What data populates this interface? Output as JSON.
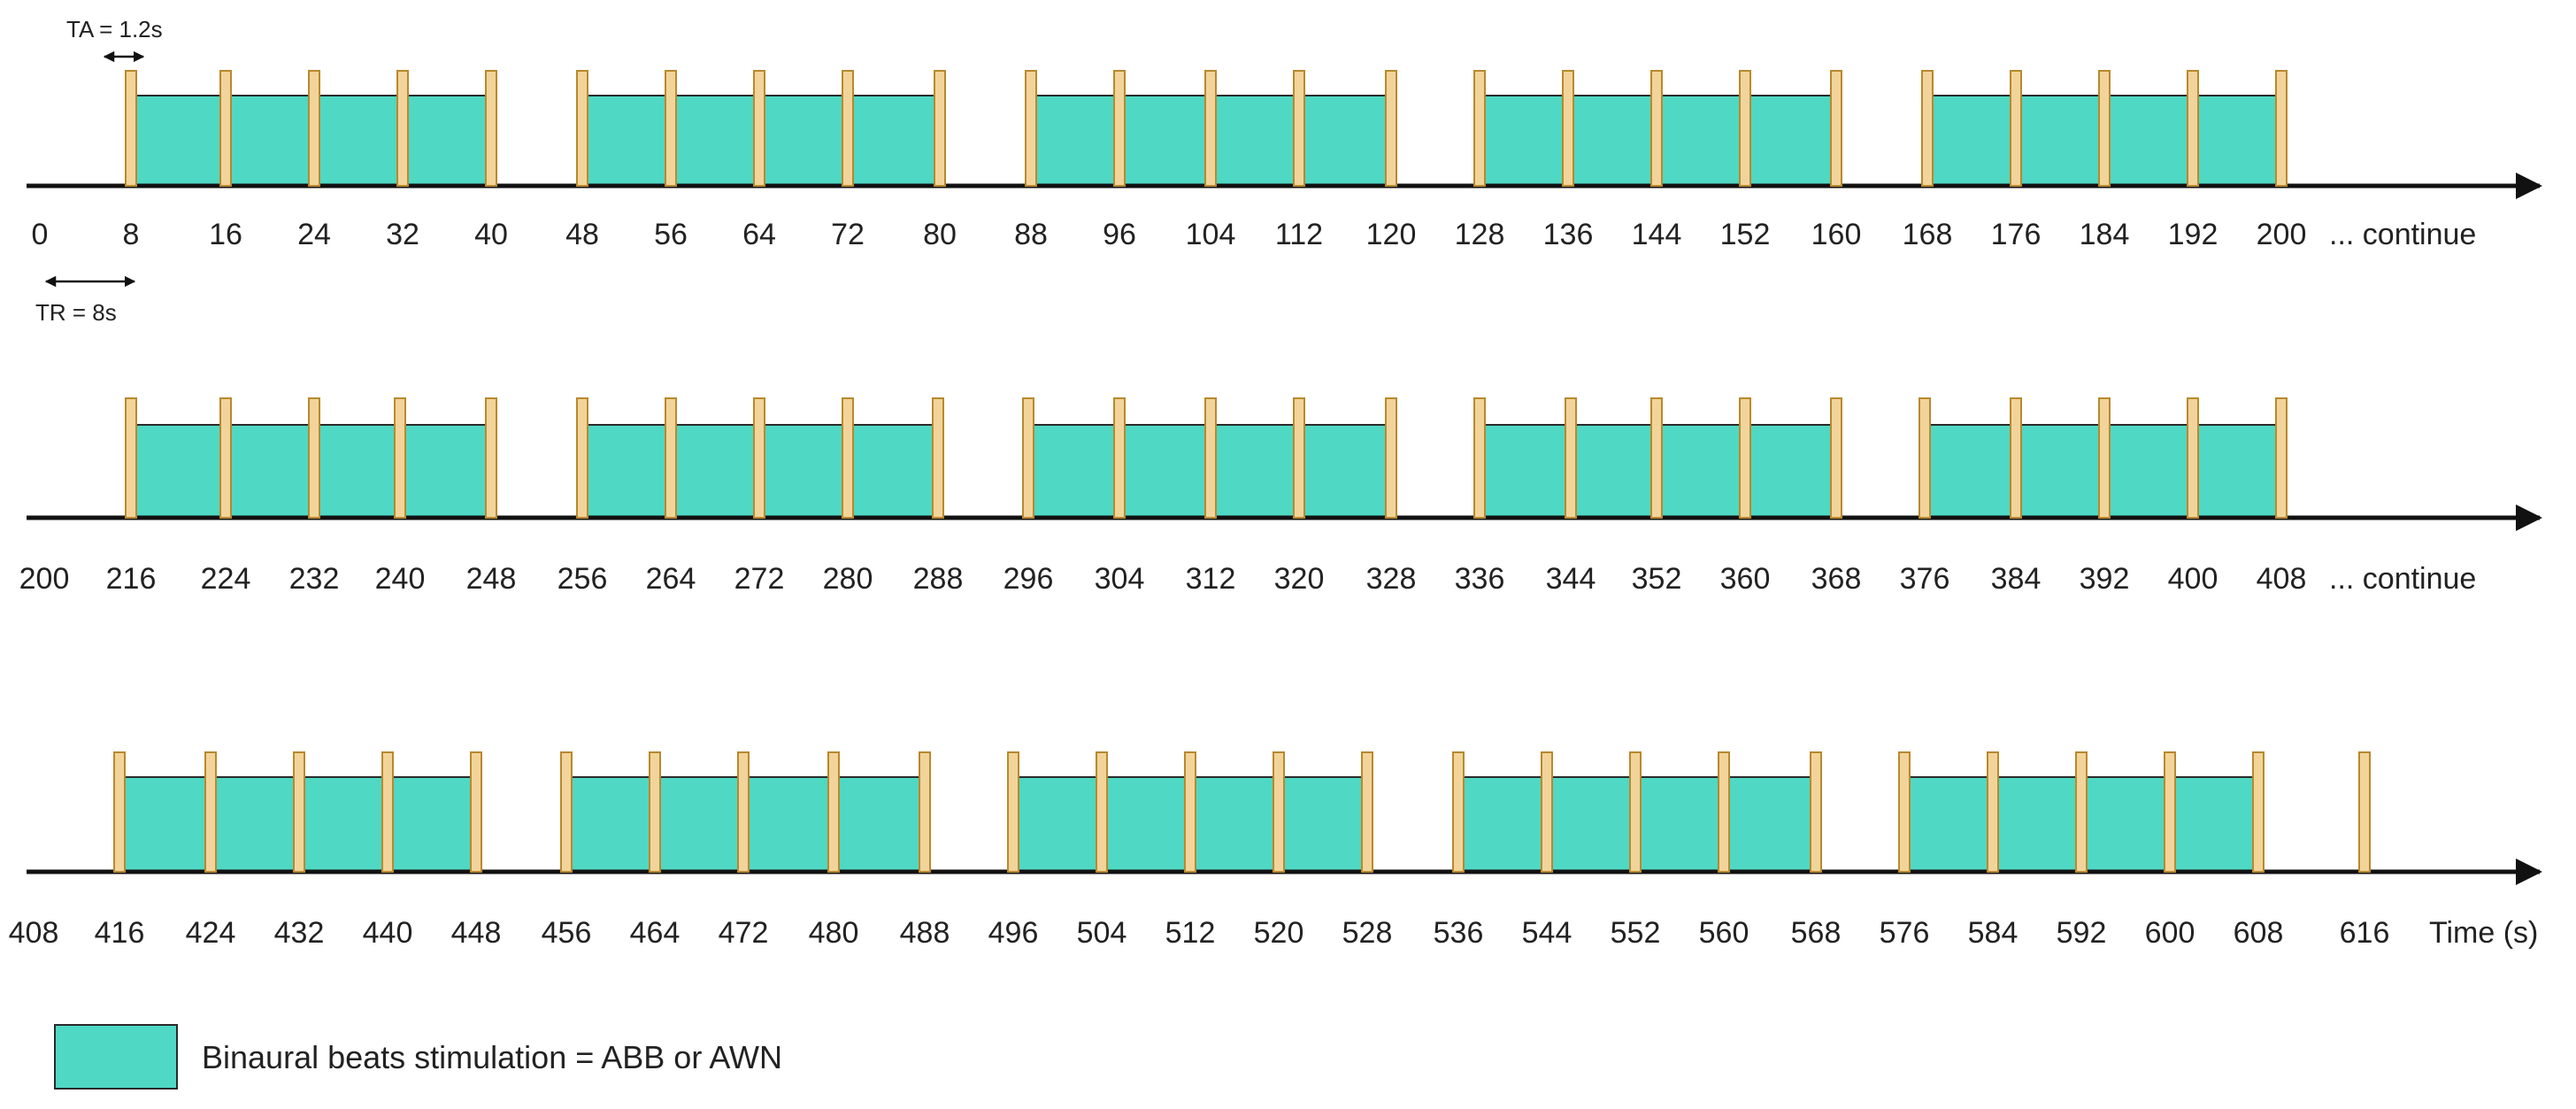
{
  "annotations": {
    "ta": "TA = 1.2s",
    "tr": "TR = 8s"
  },
  "legend": {
    "label": "Binaural beats stimulation = ABB or AWN",
    "color": "#4fd8c4"
  },
  "colors": {
    "block_fill": "#4fd8c4",
    "block_stroke": "#2a2a2a",
    "scan_fill": "#f2d49a",
    "scan_stroke": "#b8892e",
    "axis": "#111111"
  },
  "rows": [
    {
      "ticks": [
        "0",
        "8",
        "16",
        "24",
        "32",
        "40",
        "48",
        "56",
        "64",
        "72",
        "80",
        "88",
        "96",
        "104",
        "112",
        "120",
        "128",
        "136",
        "144",
        "152",
        "160",
        "168",
        "176",
        "184",
        "192",
        "200"
      ],
      "end_text": "... continue"
    },
    {
      "ticks": [
        "200",
        "216",
        "224",
        "232",
        "240",
        "248",
        "256",
        "264",
        "272",
        "280",
        "288",
        "296",
        "304",
        "312",
        "320",
        "328",
        "336",
        "344",
        "352",
        "360",
        "368",
        "376",
        "384",
        "392",
        "400",
        "408"
      ],
      "end_text": "... continue"
    },
    {
      "ticks": [
        "408",
        "416",
        "424",
        "432",
        "440",
        "448",
        "456",
        "464",
        "472",
        "480",
        "488",
        "496",
        "504",
        "512",
        "520",
        "528",
        "536",
        "544",
        "552",
        "560",
        "568",
        "576",
        "584",
        "592",
        "600",
        "608",
        "616"
      ],
      "end_text": "Time (s)"
    }
  ]
}
